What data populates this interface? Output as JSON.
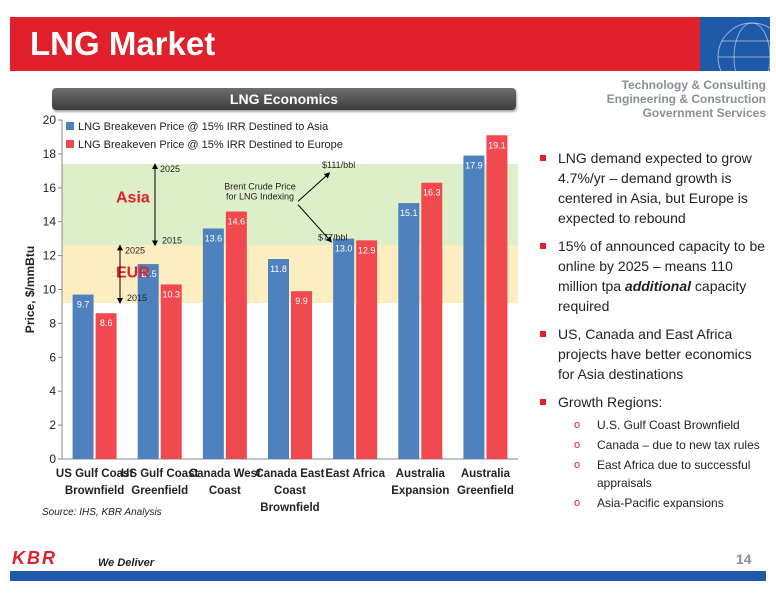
{
  "slide": {
    "title": "LNG Market",
    "services": [
      "Technology & Consulting",
      "Engineering & Construction",
      "Government Services"
    ],
    "chart_heading": "LNG Economics",
    "source": "Source: IHS, KBR Analysis",
    "logo": "KBR",
    "tagline": "We Deliver",
    "page_number": "14"
  },
  "bullets": [
    {
      "text": "LNG demand expected to grow 4.7%/yr – demand growth is centered in Asia, but Europe is expected to rebound"
    },
    {
      "text_before": "15% of announced capacity to be online by 2025 – means 110 million tpa ",
      "emphasis": "additional",
      "text_after": " capacity required"
    },
    {
      "text": "US, Canada and East Africa projects have better economics for Asia destinations"
    },
    {
      "text": "Growth Regions:"
    }
  ],
  "sub_bullets": [
    "U.S. Gulf Coast Brownfield",
    "Canada – due to new tax rules",
    "East Africa due to successful appraisals",
    "Asia-Pacific expansions"
  ],
  "chart_data": {
    "type": "bar",
    "categories": [
      [
        "US Gulf Coast",
        "Brownfield"
      ],
      [
        "US Gulf Coast",
        "Greenfield"
      ],
      [
        "Canada West",
        "Coast"
      ],
      [
        "Canada East",
        "Coast",
        "Brownfield"
      ],
      [
        "East Africa"
      ],
      [
        "Australia",
        "Expansion"
      ],
      [
        "Australia",
        "Greenfield"
      ]
    ],
    "series": [
      {
        "name": "LNG Breakeven Price @ 15% IRR Destined to Asia",
        "color": "#4f81bd",
        "values": [
          9.7,
          11.5,
          13.6,
          11.8,
          13.0,
          15.1,
          17.9
        ],
        "labels": [
          "9.7",
          "11.5",
          "13.6",
          "11.8",
          "13.0",
          "15.1",
          "17.9"
        ]
      },
      {
        "name": "LNG Breakeven Price @ 15% IRR Destined to Europe",
        "color": "#f0494f",
        "values": [
          8.6,
          10.3,
          14.6,
          9.9,
          12.9,
          16.3,
          19.1
        ],
        "labels": [
          "8.6",
          "10.3",
          "14.6",
          "9.9",
          "12.9",
          "16.3",
          "19.1"
        ]
      }
    ],
    "ylabel": "Price, $/mmBtu",
    "ylim": [
      0,
      20
    ],
    "yticks": [
      0,
      2,
      4,
      6,
      8,
      10,
      12,
      14,
      16,
      18,
      20
    ],
    "gridlines": false,
    "legend": "top-left",
    "bands": [
      {
        "label": "Asia",
        "from": 12.6,
        "to": 17.4,
        "color": "#dcefc9",
        "label_color": "#e0202a"
      },
      {
        "label": "EUR",
        "from": 9.2,
        "to": 12.6,
        "color": "#fdeec2",
        "label_color": "#e0202a"
      }
    ],
    "band_arrows": [
      {
        "from": 17.4,
        "to": 12.6,
        "top_label": "2025",
        "bottom_label": "2015"
      },
      {
        "from": 12.6,
        "to": 9.2,
        "top_label": "2025",
        "bottom_label": "2015"
      }
    ],
    "brent_annotation": {
      "label": [
        "Brent Crude Price",
        "for LNG Indexing"
      ],
      "high_label": "$111/bbl",
      "high_value": 17.4,
      "low_label": "$77/bbl",
      "low_value": 12.6
    },
    "colors": {
      "asia": "#4f81bd",
      "europe": "#f0494f",
      "brand_red": "#e0202a",
      "brand_blue": "#1f5aa8"
    }
  }
}
